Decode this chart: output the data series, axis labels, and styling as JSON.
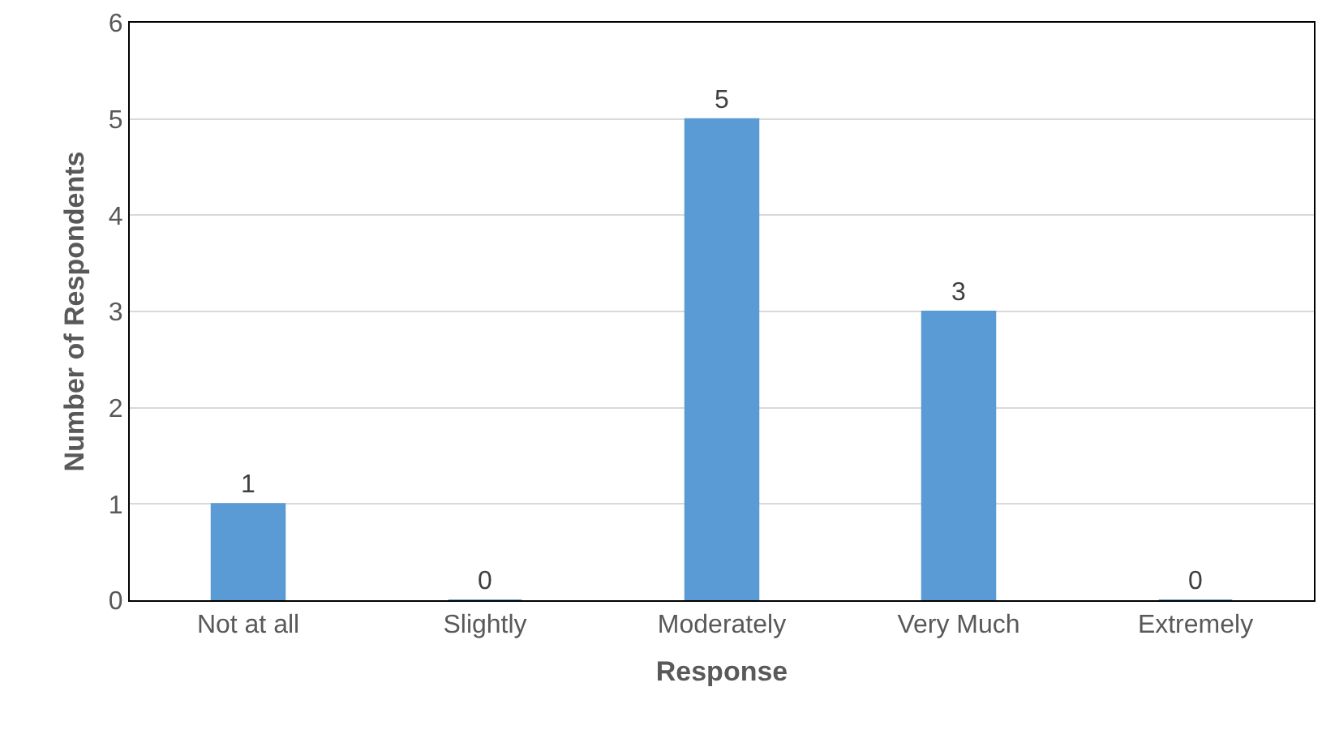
{
  "chart_data": {
    "type": "bar",
    "xlabel": "Response",
    "ylabel": "Number of Respondents",
    "categories": [
      "Not at all",
      "Slightly",
      "Moderately",
      "Very Much",
      "Extremely"
    ],
    "values": [
      1,
      0,
      5,
      3,
      0
    ],
    "color": "#5b9bd5",
    "ylim": [
      0,
      6
    ],
    "yticks": [
      0,
      1,
      2,
      3,
      4,
      5,
      6
    ],
    "grid": "y",
    "data_labels": true
  }
}
